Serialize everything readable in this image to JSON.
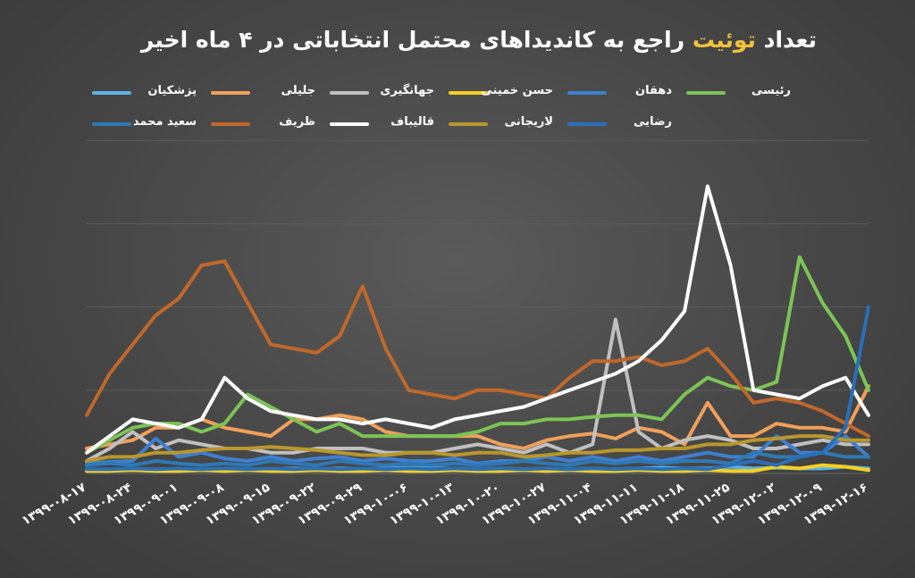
{
  "title": {
    "part1": "تعداد",
    "highlight": "توئیت",
    "part2": "راجع به کاندیداهای محتمل انتخاباتی در ۴ ماه اخیر",
    "highlight_color": "#f2c23a"
  },
  "colors": {
    "background": "#474747",
    "gridline": "#5c5c5c"
  },
  "chart_data": {
    "type": "line",
    "title": "تعداد توئیت راجع به کاندیداهای محتمل انتخاباتی در ۴ ماه اخیر",
    "x": [
      "۱۳۹۹-۰۸-۱۷",
      "",
      "۱۳۹۹-۰۸-۲۴",
      "",
      "۱۳۹۹-۰۹-۰۱",
      "",
      "۱۳۹۹-۰۹-۰۸",
      "",
      "۱۳۹۹-۰۹-۱۵",
      "",
      "۱۳۹۹-۰۹-۲۲",
      "",
      "۱۳۹۹-۰۹-۲۹",
      "",
      "۱۳۹۹-۱۰-۰۶",
      "",
      "۱۳۹۹-۱۰-۱۳",
      "",
      "۱۳۹۹-۱۰-۲۰",
      "",
      "۱۳۹۹-۱۰-۲۷",
      "",
      "۱۳۹۹-۱۱-۰۴",
      "",
      "۱۳۹۹-۱۱-۱۱",
      "",
      "۱۳۹۹-۱۱-۱۸",
      "",
      "۱۳۹۹-۱۱-۲۵",
      "",
      "۱۳۹۹-۱۲-۰۲",
      "",
      "۱۳۹۹-۱۲-۰۹",
      "",
      "۱۳۹۹-۱۲-۱۶"
    ],
    "tick_labels": [
      "۱۳۹۹-۰۸-۱۷",
      "۱۳۹۹-۰۸-۲۴",
      "۱۳۹۹-۰۹-۰۱",
      "۱۳۹۹-۰۹-۰۸",
      "۱۳۹۹-۰۹-۱۵",
      "۱۳۹۹-۰۹-۲۲",
      "۱۳۹۹-۰۹-۲۹",
      "۱۳۹۹-۱۰-۰۶",
      "۱۳۹۹-۱۰-۱۳",
      "۱۳۹۹-۱۰-۲۰",
      "۱۳۹۹-۱۰-۲۷",
      "۱۳۹۹-۱۱-۰۴",
      "۱۳۹۹-۱۱-۱۱",
      "۱۳۹۹-۱۱-۱۸",
      "۱۳۹۹-۱۱-۲۵",
      "۱۳۹۹-۱۲-۰۲",
      "۱۳۹۹-۱۲-۰۹",
      "۱۳۹۹-۱۲-۱۶"
    ],
    "ylim": [
      0,
      4.4
    ],
    "grid": true,
    "legend_position": "top",
    "series": [
      {
        "name": "پزشکیان",
        "color": "#5ab4e6",
        "values": [
          0.05,
          0.04,
          0.05,
          0.04,
          0.05,
          0.04,
          0.06,
          0.05,
          0.05,
          0.06,
          0.05,
          0.06,
          0.05,
          0.06,
          0.07,
          0.06,
          0.06,
          0.05,
          0.06,
          0.05,
          0.06,
          0.05,
          0.06,
          0.05,
          0.06,
          0.07,
          0.06,
          0.06,
          0.08,
          0.06,
          0.07,
          0.06,
          0.06,
          0.08,
          0.06
        ]
      },
      {
        "name": "جلیلی",
        "color": "#f0a05a",
        "values": [
          0.3,
          0.35,
          0.4,
          0.55,
          0.55,
          0.65,
          0.55,
          0.5,
          0.45,
          0.65,
          0.65,
          0.7,
          0.65,
          0.5,
          0.45,
          0.45,
          0.45,
          0.45,
          0.35,
          0.3,
          0.4,
          0.45,
          0.48,
          0.42,
          0.55,
          0.5,
          0.35,
          0.85,
          0.45,
          0.45,
          0.6,
          0.55,
          0.55,
          0.5,
          1.05
        ]
      },
      {
        "name": "جهانگیری",
        "color": "#c0c0c0",
        "values": [
          0.15,
          0.3,
          0.5,
          0.3,
          0.4,
          0.35,
          0.3,
          0.3,
          0.25,
          0.25,
          0.3,
          0.3,
          0.3,
          0.25,
          0.25,
          0.25,
          0.3,
          0.35,
          0.3,
          0.25,
          0.35,
          0.25,
          0.35,
          1.85,
          0.5,
          0.3,
          0.4,
          0.45,
          0.4,
          0.3,
          0.3,
          0.35,
          0.4,
          0.35,
          0.35
        ]
      },
      {
        "name": "حسن خمینی",
        "color": "#f5d020",
        "values": [
          0.03,
          0.03,
          0.04,
          0.03,
          0.03,
          0.04,
          0.03,
          0.04,
          0.03,
          0.03,
          0.04,
          0.03,
          0.03,
          0.04,
          0.03,
          0.03,
          0.04,
          0.03,
          0.03,
          0.04,
          0.03,
          0.04,
          0.03,
          0.03,
          0.04,
          0.03,
          0.03,
          0.04,
          0.03,
          0.03,
          0.08,
          0.06,
          0.1,
          0.08,
          0.04
        ]
      },
      {
        "name": "دهقان",
        "color": "#3f7fd0",
        "values": [
          0.12,
          0.14,
          0.15,
          0.42,
          0.2,
          0.25,
          0.18,
          0.15,
          0.2,
          0.15,
          0.18,
          0.2,
          0.15,
          0.18,
          0.15,
          0.15,
          0.18,
          0.12,
          0.15,
          0.15,
          0.2,
          0.15,
          0.2,
          0.15,
          0.2,
          0.15,
          0.2,
          0.25,
          0.2,
          0.2,
          0.45,
          0.25,
          0.25,
          0.45,
          0.2
        ]
      },
      {
        "name": "رئیسی",
        "color": "#7cc456",
        "values": [
          0.25,
          0.4,
          0.55,
          0.6,
          0.6,
          0.5,
          0.6,
          0.95,
          0.8,
          0.65,
          0.5,
          0.6,
          0.45,
          0.45,
          0.45,
          0.45,
          0.45,
          0.5,
          0.6,
          0.6,
          0.65,
          0.65,
          0.68,
          0.7,
          0.7,
          0.65,
          0.95,
          1.15,
          1.05,
          1.0,
          1.1,
          2.6,
          2.05,
          1.65,
          1.0
        ]
      },
      {
        "name": "سعید محمد",
        "color": "#2e79b5",
        "values": [
          0.1,
          0.12,
          0.1,
          0.15,
          0.12,
          0.1,
          0.12,
          0.1,
          0.15,
          0.12,
          0.1,
          0.15,
          0.12,
          0.1,
          0.12,
          0.1,
          0.12,
          0.1,
          0.12,
          0.15,
          0.12,
          0.1,
          0.15,
          0.12,
          0.15,
          0.12,
          0.15,
          0.15,
          0.12,
          0.25,
          0.2,
          0.2,
          0.25,
          0.2,
          0.2
        ]
      },
      {
        "name": "ظریف",
        "color": "#c0682b",
        "values": [
          0.7,
          1.2,
          1.55,
          1.9,
          2.1,
          2.5,
          2.55,
          2.05,
          1.55,
          1.5,
          1.45,
          1.65,
          2.25,
          1.5,
          1.0,
          0.95,
          0.9,
          1.0,
          1.0,
          0.95,
          0.9,
          1.15,
          1.35,
          1.35,
          1.4,
          1.3,
          1.35,
          1.5,
          1.2,
          0.85,
          0.9,
          0.85,
          0.75,
          0.6,
          0.45
        ]
      },
      {
        "name": "قالیباف",
        "color": "#ffffff",
        "values": [
          0.25,
          0.45,
          0.65,
          0.6,
          0.55,
          0.65,
          1.15,
          0.9,
          0.75,
          0.7,
          0.65,
          0.65,
          0.6,
          0.65,
          0.6,
          0.55,
          0.65,
          0.7,
          0.75,
          0.8,
          0.9,
          1.0,
          1.1,
          1.2,
          1.35,
          1.6,
          1.95,
          3.45,
          2.5,
          1.0,
          0.95,
          0.9,
          1.05,
          1.15,
          0.7
        ]
      },
      {
        "name": "لاریجانی",
        "color": "#b8972c",
        "values": [
          0.15,
          0.2,
          0.2,
          0.25,
          0.25,
          0.28,
          0.3,
          0.3,
          0.32,
          0.3,
          0.28,
          0.25,
          0.22,
          0.22,
          0.25,
          0.25,
          0.22,
          0.25,
          0.25,
          0.2,
          0.22,
          0.25,
          0.25,
          0.28,
          0.28,
          0.3,
          0.3,
          0.35,
          0.35,
          0.4,
          0.42,
          0.45,
          0.45,
          0.4,
          0.4
        ]
      },
      {
        "name": "رضایی",
        "color": "#2a6fb8",
        "values": [
          0.05,
          0.05,
          0.06,
          0.05,
          0.06,
          0.05,
          0.06,
          0.05,
          0.06,
          0.05,
          0.06,
          0.05,
          0.06,
          0.05,
          0.06,
          0.05,
          0.06,
          0.05,
          0.06,
          0.05,
          0.06,
          0.05,
          0.06,
          0.05,
          0.06,
          0.05,
          0.06,
          0.05,
          0.1,
          0.15,
          0.1,
          0.2,
          0.25,
          0.55,
          2.0
        ]
      }
    ]
  }
}
